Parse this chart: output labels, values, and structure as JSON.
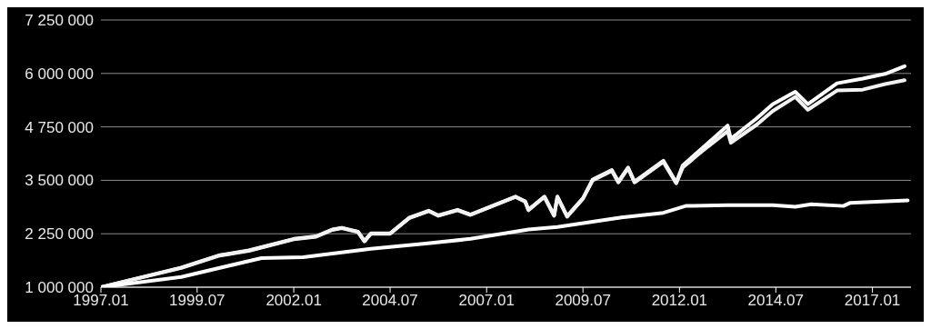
{
  "chart_data": {
    "type": "line",
    "grid": "y",
    "legend": false,
    "xlim": [
      "1997-01",
      "2018-01"
    ],
    "xticks": [
      {
        "value": "1997-01",
        "label": "1997.01"
      },
      {
        "value": "1999-07",
        "label": "1999.07"
      },
      {
        "value": "2002-01",
        "label": "2002.01"
      },
      {
        "value": "2004-07",
        "label": "2004.07"
      },
      {
        "value": "2007-01",
        "label": "2007.01"
      },
      {
        "value": "2009-07",
        "label": "2009.07"
      },
      {
        "value": "2012-01",
        "label": "2012.01"
      },
      {
        "value": "2014-07",
        "label": "2014.07"
      },
      {
        "value": "2017-01",
        "label": "2017.01"
      }
    ],
    "ylim": [
      1000000,
      7250000
    ],
    "yticks": [
      {
        "value": 1000000,
        "label": "1 000 000"
      },
      {
        "value": 2250000,
        "label": "2 250 000"
      },
      {
        "value": 3500000,
        "label": "3 500 000"
      },
      {
        "value": 4750000,
        "label": "4 750 000"
      },
      {
        "value": 6000000,
        "label": "6 000 000"
      },
      {
        "value": 7250000,
        "label": "7 250 000"
      }
    ],
    "series": [
      {
        "color": "#ffffff",
        "x": [
          "1997-01",
          "1999-02",
          "2000-02",
          "2000-11",
          "2002-01",
          "2002-08",
          "2003-01",
          "2003-04",
          "2003-09",
          "2003-11",
          "2004-01",
          "2004-07",
          "2005-01",
          "2005-07",
          "2005-10",
          "2006-04",
          "2006-08",
          "2007-10",
          "2008-01",
          "2008-02",
          "2008-07",
          "2008-10",
          "2008-11",
          "2009-02",
          "2009-07",
          "2009-10",
          "2010-04",
          "2010-06",
          "2010-09",
          "2010-11",
          "2011-08",
          "2011-12",
          "2012-02",
          "2012-08",
          "2013-04",
          "2013-05",
          "2014-01",
          "2014-06",
          "2015-01",
          "2015-05",
          "2016-02",
          "2016-10",
          "2017-05",
          "2017-11"
        ],
        "values": [
          1000000,
          1460000,
          1750000,
          1860000,
          2130000,
          2190000,
          2350000,
          2390000,
          2300000,
          2080000,
          2260000,
          2260000,
          2630000,
          2790000,
          2680000,
          2810000,
          2700000,
          3120000,
          3010000,
          2810000,
          3120000,
          2680000,
          3120000,
          2660000,
          3080000,
          3520000,
          3740000,
          3470000,
          3800000,
          3470000,
          3960000,
          3450000,
          3850000,
          4250000,
          4780000,
          4470000,
          4950000,
          5280000,
          5570000,
          5280000,
          5770000,
          5880000,
          5990000,
          6170000
        ]
      },
      {
        "color": "#f2f2f2",
        "x": [
          "1997-01",
          "1999-02",
          "2000-02",
          "2000-11",
          "2002-01",
          "2002-08",
          "2003-01",
          "2003-04",
          "2003-09",
          "2003-11",
          "2004-01",
          "2004-07",
          "2005-01",
          "2005-07",
          "2005-10",
          "2006-04",
          "2006-08",
          "2007-10",
          "2008-01",
          "2008-02",
          "2008-07",
          "2008-10",
          "2008-11",
          "2009-02",
          "2009-07",
          "2009-10",
          "2010-04",
          "2010-06",
          "2010-09",
          "2010-11",
          "2011-08",
          "2011-12",
          "2012-02",
          "2012-08",
          "2013-04",
          "2013-05",
          "2014-01",
          "2014-06",
          "2015-01",
          "2015-05",
          "2016-02",
          "2016-10",
          "2017-05",
          "2017-11"
        ],
        "values": [
          1000000,
          1450000,
          1740000,
          1850000,
          2120000,
          2180000,
          2340000,
          2380000,
          2290000,
          2070000,
          2250000,
          2250000,
          2620000,
          2780000,
          2670000,
          2800000,
          2690000,
          3110000,
          3000000,
          2800000,
          3110000,
          2670000,
          3110000,
          2650000,
          3070000,
          3500000,
          3720000,
          3450000,
          3780000,
          3450000,
          3930000,
          3430000,
          3800000,
          4180000,
          4650000,
          4380000,
          4800000,
          5120000,
          5450000,
          5150000,
          5600000,
          5620000,
          5750000,
          5840000
        ]
      },
      {
        "color": "#ffffff",
        "x": [
          "1997-01",
          "1999-02",
          "2001-03",
          "2002-04",
          "2004-01",
          "2005-06",
          "2006-08",
          "2008-02",
          "2008-11",
          "2010-07",
          "2011-08",
          "2012-03",
          "2013-04",
          "2014-06",
          "2015-01",
          "2015-06",
          "2016-04",
          "2016-06",
          "2017-12"
        ],
        "values": [
          1000000,
          1240000,
          1680000,
          1700000,
          1900000,
          2020000,
          2130000,
          2350000,
          2410000,
          2630000,
          2740000,
          2900000,
          2920000,
          2920000,
          2880000,
          2940000,
          2900000,
          2970000,
          3030000
        ]
      }
    ]
  }
}
